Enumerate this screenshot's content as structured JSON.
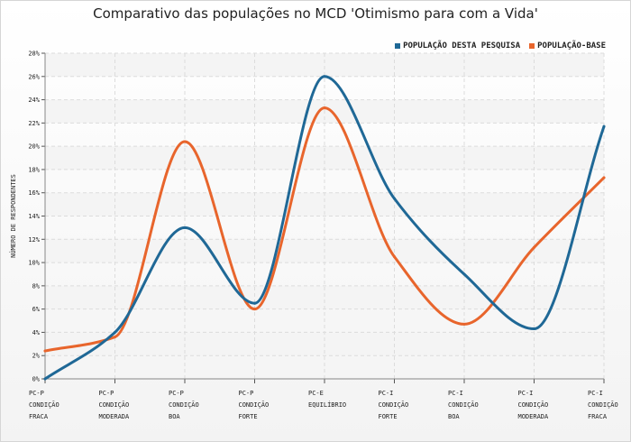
{
  "chart_data": {
    "type": "line",
    "title": "Comparativo das populações no MCD 'Otimismo para com a Vida'",
    "ylabel": "NÚMERO DE RESPONDENTES",
    "xlabel": "",
    "ylim": [
      0,
      28
    ],
    "y_ticks": [
      "0%",
      "2%",
      "4%",
      "6%",
      "8%",
      "10%",
      "12%",
      "14%",
      "16%",
      "18%",
      "20%",
      "22%",
      "24%",
      "26%",
      "28%"
    ],
    "categories": [
      [
        "PC-P",
        "CONDIÇÃO",
        "FRACA"
      ],
      [
        "PC-P",
        "CONDIÇÃO",
        "MODERADA"
      ],
      [
        "PC-P",
        "CONDIÇÃO",
        "BOA"
      ],
      [
        "PC-P",
        "CONDIÇÃO",
        "FORTE"
      ],
      [
        "PC-E",
        "EQUILÍBRIO",
        ""
      ],
      [
        "PC-I",
        "CONDIÇÃO",
        "FORTE"
      ],
      [
        "PC-I",
        "CONDIÇÃO",
        "BOA"
      ],
      [
        "PC-I",
        "CONDIÇÃO",
        "MODERADA"
      ],
      [
        "PC-I",
        "CONDIÇÃO",
        "FRACA"
      ]
    ],
    "series": [
      {
        "name": "POPULAÇÃO DESTA PESQUISA",
        "color": "#1f6896",
        "values": [
          0,
          4,
          13,
          6.5,
          26,
          15.5,
          9,
          4.3,
          21.7
        ]
      },
      {
        "name": "POPULAÇÃO-BASE",
        "color": "#e8652c",
        "values": [
          2.4,
          3.6,
          20.4,
          6,
          23.3,
          10.5,
          4.7,
          11.3,
          17.3
        ]
      }
    ],
    "grid": true,
    "legend_position": "top-right"
  }
}
